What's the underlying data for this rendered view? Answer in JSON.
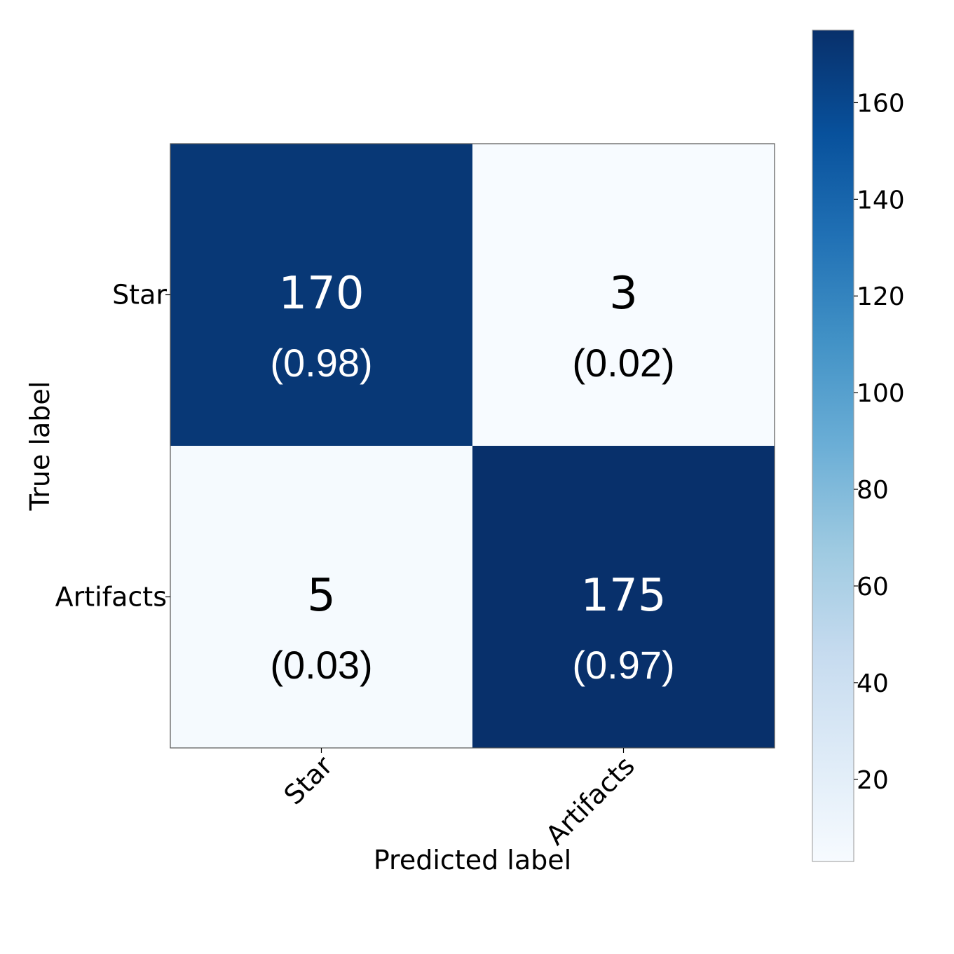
{
  "chart_data": {
    "type": "heatmap",
    "title": "",
    "xlabel": "Predicted label",
    "ylabel": "True label",
    "x_categories": [
      "Star",
      "Artifacts"
    ],
    "y_categories": [
      "Star",
      "Artifacts"
    ],
    "values": [
      [
        170,
        3
      ],
      [
        5,
        175
      ]
    ],
    "ratios": [
      [
        "(0.98)",
        "(0.02)"
      ],
      [
        "(0.03)",
        "(0.97)"
      ]
    ],
    "colormap": "Blues",
    "colorbar": {
      "range": [
        3,
        175
      ],
      "ticks": [
        20,
        40,
        60,
        80,
        100,
        120,
        140,
        160
      ]
    },
    "colors": {
      "high": "#08306b",
      "low": "#f7fbff",
      "text_on_dark": "#ffffff",
      "text_on_light": "#000000"
    }
  }
}
